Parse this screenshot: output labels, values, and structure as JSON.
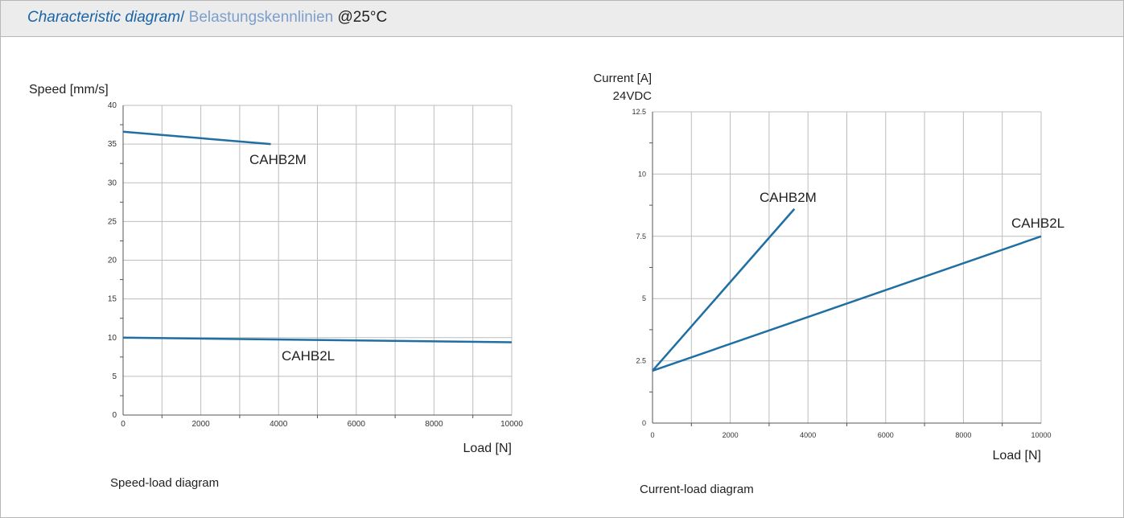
{
  "header": {
    "title_en": "Characteristic diagram",
    "separator": "/",
    "title_de": "Belastungskennlinien",
    "temperature": "@25°C"
  },
  "colors": {
    "series": "#1f6fa3",
    "grid": "#bdbdbd",
    "title_en": "#1a64a8",
    "title_de": "#7c9fcc",
    "header_bg": "#ececec"
  },
  "chart_data": [
    {
      "type": "line",
      "title": "Speed-load diagram",
      "ylabel": "Speed [mm/s]",
      "xlabel": "Load [N]",
      "xlim": [
        0,
        10000
      ],
      "ylim": [
        0,
        40
      ],
      "xticks": [
        0,
        2000,
        4000,
        6000,
        8000,
        10000
      ],
      "yticks": [
        0,
        5,
        10,
        15,
        20,
        25,
        30,
        35,
        40
      ],
      "grid": true,
      "series": [
        {
          "name": "CAHB2M",
          "x": [
            0,
            3800
          ],
          "y": [
            36.6,
            35.0
          ]
        },
        {
          "name": "CAHB2L",
          "x": [
            0,
            10000
          ],
          "y": [
            10.0,
            9.4
          ]
        }
      ]
    },
    {
      "type": "line",
      "title": "Current-load diagram",
      "ylabel": "Current [A]",
      "ylabel2": "24VDC",
      "xlabel": "Load [N]",
      "xlim": [
        0,
        10000
      ],
      "ylim": [
        0,
        12.5
      ],
      "xticks": [
        0,
        2000,
        4000,
        6000,
        8000,
        10000
      ],
      "yticks": [
        0,
        2.5,
        5,
        7.5,
        10,
        12.5
      ],
      "grid": true,
      "series": [
        {
          "name": "CAHB2M",
          "x": [
            0,
            3650
          ],
          "y": [
            2.1,
            8.6
          ]
        },
        {
          "name": "CAHB2L",
          "x": [
            0,
            10000
          ],
          "y": [
            2.1,
            7.5
          ]
        }
      ]
    }
  ]
}
